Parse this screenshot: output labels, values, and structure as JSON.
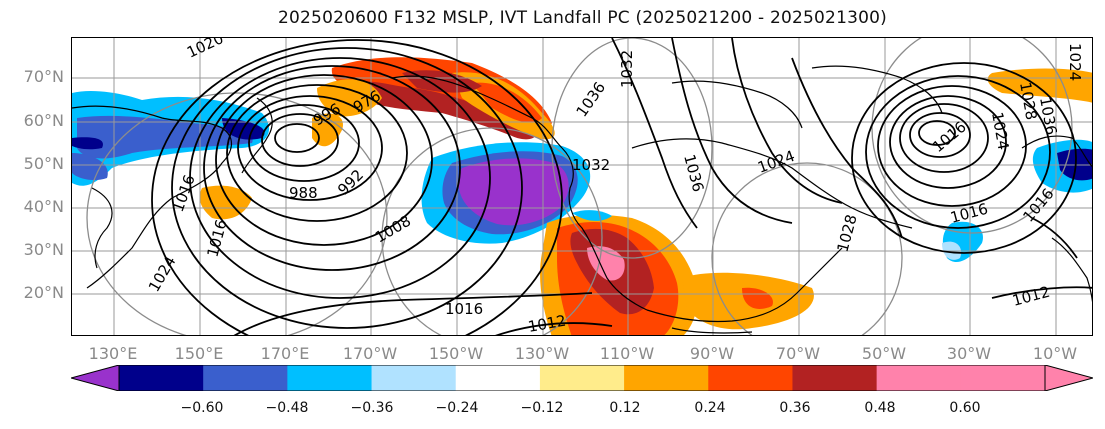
{
  "title": "2025020600 F132 MSLP, IVT Landfall PC (2025021200 - 2025021300)",
  "lat_labels": [
    "70°N",
    "60°N",
    "50°N",
    "40°N",
    "30°N",
    "20°N"
  ],
  "lon_labels": [
    "130°E",
    "150°E",
    "170°E",
    "170°W",
    "150°W",
    "130°W",
    "110°W",
    "90°W",
    "70°W",
    "50°W",
    "30°W",
    "10°W"
  ],
  "colorbar": {
    "tick_labels": [
      "−0.60",
      "−0.48",
      "−0.36",
      "−0.24",
      "−0.12",
      "0.12",
      "0.24",
      "0.36",
      "0.48",
      "0.60"
    ],
    "colors": [
      "#9932cc",
      "#00008b",
      "#3a5fcd",
      "#00bfff",
      "#b0e2ff",
      "#ffffff",
      "#ffec8b",
      "#ffa500",
      "#ff4500",
      "#b22222",
      "#ff82ab",
      "#ff82ab"
    ]
  },
  "contour_labels": [
    "1020",
    "1024",
    "1016",
    "988",
    "992",
    "1008",
    "1016",
    "1012",
    "1036",
    "1032",
    "1032",
    "1036",
    "1024",
    "1028",
    "1016",
    "1016",
    "1012",
    "1024",
    "1028",
    "1036",
    "1024",
    "1016",
    "1016",
    "996",
    "976"
  ]
}
